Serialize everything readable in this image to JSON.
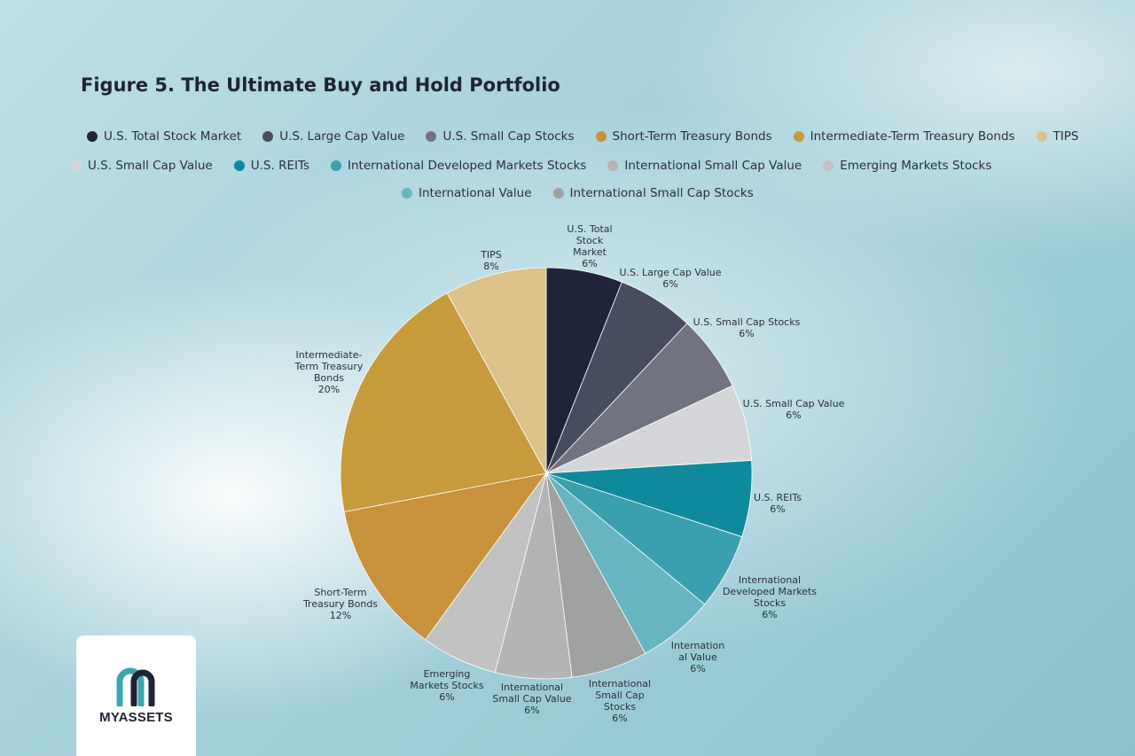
{
  "title": "Figure 5. The Ultimate Buy and Hold Portfolio",
  "logo": {
    "text": "MYASSETS",
    "colors": {
      "teal": "#3aa6b0",
      "navy": "#1f2433"
    }
  },
  "chart_data": {
    "type": "pie",
    "title": "Figure 5. The Ultimate Buy and Hold Portfolio",
    "start_angle": "12 o'clock, clockwise",
    "slices": [
      {
        "name": "U.S. Total Stock Market",
        "value": 6,
        "color": "#20243a",
        "label_lines": [
          "U.S. Total",
          "Stock",
          "Market",
          "6%"
        ]
      },
      {
        "name": "U.S. Large Cap Value",
        "value": 6,
        "color": "#474c5e",
        "label_lines": [
          "U.S. Large Cap Value",
          "6%"
        ]
      },
      {
        "name": "U.S. Small Cap Stocks",
        "value": 6,
        "color": "#717480",
        "label_lines": [
          "U.S. Small Cap Stocks",
          "6%"
        ]
      },
      {
        "name": "U.S. Small Cap Value",
        "value": 6,
        "color": "#d5d6d9",
        "label_lines": [
          "U.S. Small Cap Value",
          "6%"
        ]
      },
      {
        "name": "U.S. REITs",
        "value": 6,
        "color": "#0f8a9c",
        "label_lines": [
          "U.S. REITs",
          "6%"
        ]
      },
      {
        "name": "International Developed Markets Stocks",
        "value": 6,
        "color": "#3aa0ae",
        "label_lines": [
          "International",
          "Developed Markets",
          "Stocks",
          "6%"
        ]
      },
      {
        "name": "International Value",
        "value": 6,
        "color": "#66b5c1",
        "label_lines": [
          "Internation",
          "al Value",
          "6%"
        ]
      },
      {
        "name": "International Small Cap Stocks",
        "value": 6,
        "color": "#a0a1a1",
        "label_lines": [
          "International",
          "Small Cap",
          "Stocks",
          "6%"
        ]
      },
      {
        "name": "International Small Cap Value",
        "value": 6,
        "color": "#b3b4b4",
        "label_lines": [
          "International",
          "Small Cap Value",
          "6%"
        ]
      },
      {
        "name": "Emerging Markets Stocks",
        "value": 6,
        "color": "#c1c1c1",
        "label_lines": [
          "Emerging",
          "Markets Stocks",
          "6%"
        ]
      },
      {
        "name": "Short-Term Treasury Bonds",
        "value": 12,
        "color": "#c8913b",
        "label_lines": [
          "Short-Term",
          "Treasury Bonds",
          "12%"
        ]
      },
      {
        "name": "Intermediate-Term Treasury Bonds",
        "value": 20,
        "color": "#c59b3b",
        "label_lines": [
          "Intermediate-",
          "Term Treasury",
          "Bonds",
          "20%"
        ]
      },
      {
        "name": "TIPS",
        "value": 8,
        "color": "#dbc18a",
        "label_lines": [
          "TIPS",
          "8%"
        ]
      }
    ],
    "legend": {
      "rows": [
        [
          {
            "name": "U.S. Total Stock Market",
            "color": "#20243a"
          },
          {
            "name": "U.S. Large Cap Value",
            "color": "#474c5e"
          },
          {
            "name": "U.S. Small Cap Stocks",
            "color": "#717480"
          },
          {
            "name": "Short-Term Treasury Bonds",
            "color": "#c8913b"
          },
          {
            "name": "Intermediate-Term Treasury Bonds",
            "color": "#c59b3b"
          },
          {
            "name": "TIPS",
            "color": "#dbc18a"
          }
        ],
        [
          {
            "name": "U.S. Small Cap Value",
            "color": "#d5d6d9"
          },
          {
            "name": "U.S. REITs",
            "color": "#0f8a9c"
          },
          {
            "name": "International Developed Markets Stocks",
            "color": "#3aa0ae"
          },
          {
            "name": "International Small Cap Value",
            "color": "#b3b4b4"
          },
          {
            "name": "Emerging Markets Stocks",
            "color": "#c1c1c1"
          }
        ],
        [
          {
            "name": "International Value",
            "color": "#66b5c1"
          },
          {
            "name": "International Small Cap Stocks",
            "color": "#a0a1a1"
          }
        ]
      ]
    }
  }
}
